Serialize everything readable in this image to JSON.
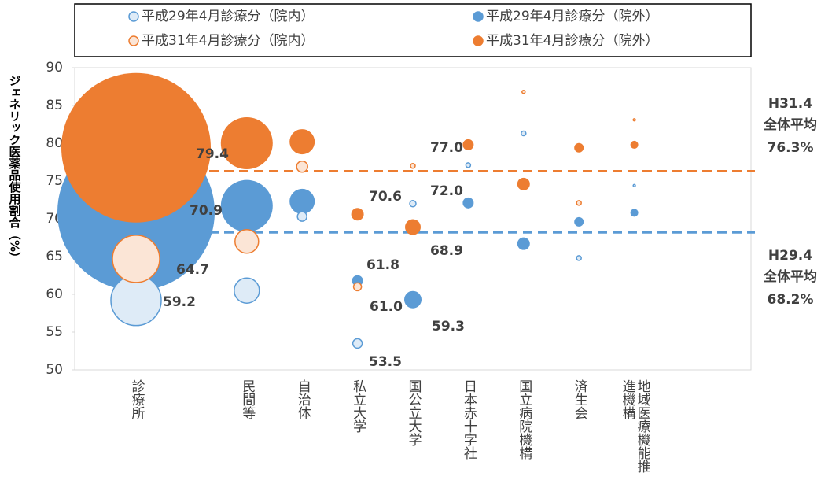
{
  "chart_data": {
    "type": "bubble",
    "y_label": "ジェネリック医薬品使用割合（%）",
    "categories": [
      "診療所",
      null,
      "民間等",
      "自治体",
      "私立大学",
      "国公立大学",
      "日本赤十字社",
      "国立病院機構",
      "済生会",
      "地域医療機能推進機構"
    ],
    "ylim": [
      50,
      90
    ],
    "yticks": [
      50,
      55,
      60,
      65,
      70,
      75,
      80,
      85,
      90
    ],
    "grid": false,
    "series": [
      {
        "name": "平成29年4月診療分（院内）",
        "color": "#5b9bd5",
        "fill": "#deebf7",
        "values": [
          59.2,
          null,
          60.5,
          70.3,
          53.5,
          72.0,
          77.1,
          81.3,
          64.8,
          74.4
        ],
        "sizes": [
          1024,
          null,
          256,
          36,
          36,
          16,
          9,
          9,
          9,
          2
        ],
        "value_labels": [
          "59.2",
          null,
          null,
          null,
          "53.5",
          "72.0",
          null,
          null,
          null,
          null
        ]
      },
      {
        "name": "平成29年4月診療分（院外）",
        "color": "#5b9bd5",
        "fill": "#5b9bd5",
        "values": [
          70.9,
          null,
          71.7,
          72.3,
          61.8,
          59.3,
          72.1,
          66.7,
          69.6,
          70.8
        ],
        "sizes": [
          10000,
          null,
          1089,
          256,
          49,
          121,
          49,
          64,
          36,
          25
        ],
        "value_labels": [
          "70.9",
          null,
          null,
          null,
          "61.8",
          "59.3",
          null,
          null,
          null,
          null
        ]
      },
      {
        "name": "平成31年4月診療分（院内）",
        "color": "#ed7d31",
        "fill": "#fbe5d6",
        "values": [
          64.7,
          null,
          67.0,
          76.9,
          61.0,
          77.0,
          null,
          86.8,
          72.1,
          83.1
        ],
        "sizes": [
          900,
          null,
          225,
          49,
          25,
          9,
          null,
          4,
          9,
          2
        ],
        "value_labels": [
          "64.7",
          null,
          null,
          null,
          "61.0",
          "77.0",
          null,
          null,
          null,
          null
        ]
      },
      {
        "name": "平成31年4月診療分（院外）",
        "color": "#ed7d31",
        "fill": "#ed7d31",
        "values": [
          79.4,
          null,
          80.0,
          80.2,
          70.6,
          68.9,
          79.8,
          74.6,
          79.4,
          79.8
        ],
        "sizes": [
          9025,
          null,
          1089,
          256,
          64,
          100,
          49,
          64,
          36,
          25
        ],
        "value_labels": [
          "79.4",
          null,
          null,
          null,
          "70.6",
          "68.9",
          null,
          null,
          null,
          null
        ]
      }
    ],
    "reference_lines": [
      {
        "label": "H31.4",
        "sublabel": "全体平均",
        "value": 76.3,
        "value_label": "76.3%",
        "color": "#ed7d31"
      },
      {
        "label": "H29.4",
        "sublabel": "全体平均",
        "value": 68.2,
        "value_label": "68.2%",
        "color": "#5b9bd5"
      }
    ]
  }
}
